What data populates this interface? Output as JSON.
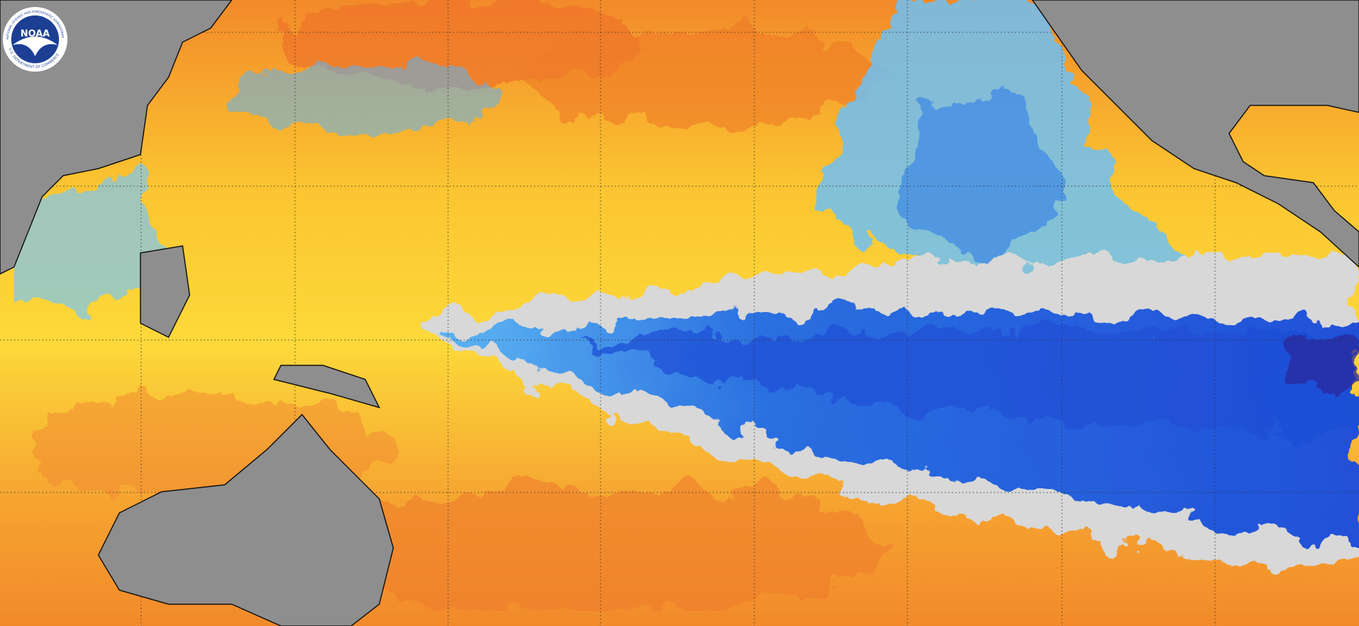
{
  "logo": {
    "text": "NOAA",
    "ring_top": "NATIONAL OCEANIC AND ATMOSPHERIC ADMINISTRATION",
    "ring_bottom": "U.S. DEPARTMENT OF COMMERCE"
  }
}
